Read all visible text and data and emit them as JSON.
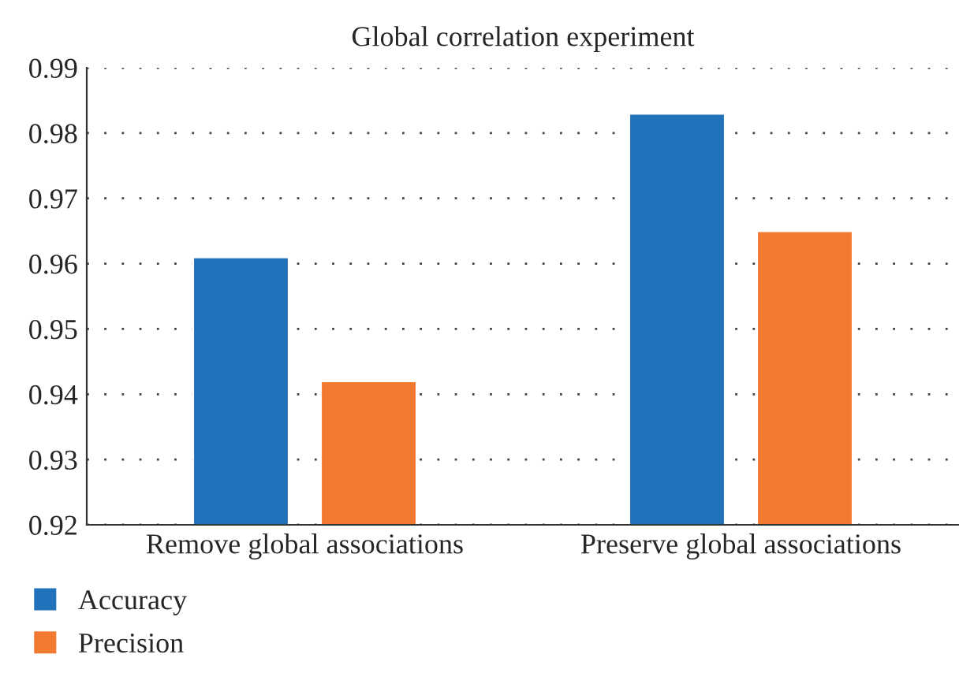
{
  "chart_data": {
    "type": "bar",
    "title": "Global correlation experiment",
    "categories": [
      "Remove global associations",
      "Preserve global associations"
    ],
    "series": [
      {
        "name": "Accuracy",
        "color": "#2272bb",
        "values": [
          0.961,
          0.983
        ]
      },
      {
        "name": "Precision",
        "color": "#f27a30",
        "values": [
          0.942,
          0.965
        ]
      }
    ],
    "ylim": [
      0.92,
      0.99
    ],
    "yticks": [
      0.92,
      0.93,
      0.94,
      0.95,
      0.96,
      0.97,
      0.98,
      0.99
    ],
    "grid": "y",
    "legend": "bottom left"
  }
}
